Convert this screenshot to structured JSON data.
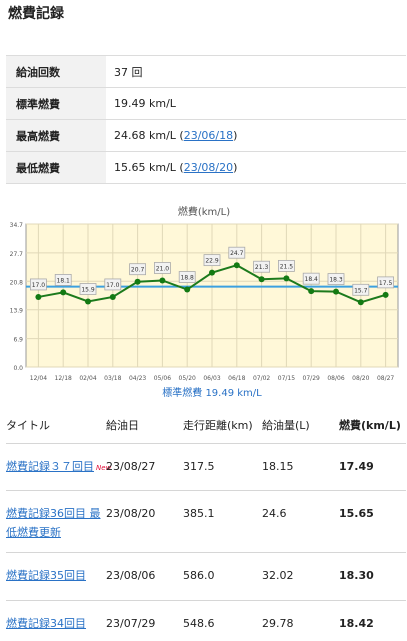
{
  "page": {
    "title": "燃費記録"
  },
  "summary": {
    "rows": [
      {
        "label": "給油回数",
        "value": "37 回"
      },
      {
        "label": "標準燃費",
        "value": "19.49 km/L"
      },
      {
        "label": "最高燃費",
        "value": "24.68 km/L (",
        "date": "23/06/18",
        "suffix": ")"
      },
      {
        "label": "最低燃費",
        "value": "15.65 km/L (",
        "date": "23/08/20",
        "suffix": ")"
      }
    ]
  },
  "chart_data": {
    "type": "line",
    "title": "燃費(km/L)",
    "x": [
      "12/04",
      "12/18",
      "02/04",
      "03/18",
      "04/23",
      "05/06",
      "05/20",
      "06/03",
      "06/18",
      "07/02",
      "07/15",
      "07/29",
      "08/06",
      "08/20",
      "08/27"
    ],
    "series": [
      {
        "values": [
          17.0,
          18.1,
          15.9,
          17.0,
          20.7,
          21.0,
          18.8,
          22.9,
          24.7,
          21.3,
          21.5,
          18.4,
          18.3,
          15.7,
          17.5
        ],
        "color": "#1c7a1c"
      }
    ],
    "point_labels": [
      "17.0",
      "18.1",
      "15.9",
      "17.0",
      "20.7",
      "21.0",
      "18.8",
      "22.9",
      "24.7",
      "21.3",
      "21.5",
      "18.4",
      "18.3",
      "15.7",
      "17.5"
    ],
    "reference_line": {
      "label": "標準燃費 19.49 km/L",
      "value": 19.49,
      "color": "#3ba0e0"
    },
    "yticks": [
      "34.7",
      "27.7",
      "20.8",
      "13.9",
      "6.9",
      "0.0"
    ],
    "ylim": [
      0,
      34.7
    ],
    "grid": true,
    "plot_background": "#fff8d8"
  },
  "list": {
    "headers": [
      "タイトル",
      "給油日",
      "走行距離(km)",
      "給油量(L)",
      "燃費(km/L)"
    ],
    "new_badge": "New",
    "rows": [
      {
        "title": "燃費記録３７回目",
        "date": "23/08/27",
        "distance": "317.5",
        "fuel": "18.15",
        "mpg": "17.49",
        "new": true
      },
      {
        "title": "燃費記録36回目 最低燃費更新",
        "date": "23/08/20",
        "distance": "385.1",
        "fuel": "24.6",
        "mpg": "15.65",
        "new": false
      },
      {
        "title": "燃費記録35回目",
        "date": "23/08/06",
        "distance": "586.0",
        "fuel": "32.02",
        "mpg": "18.30",
        "new": false
      },
      {
        "title": "燃費記録34回目",
        "date": "23/07/29",
        "distance": "548.6",
        "fuel": "29.78",
        "mpg": "18.42",
        "new": false
      }
    ]
  }
}
